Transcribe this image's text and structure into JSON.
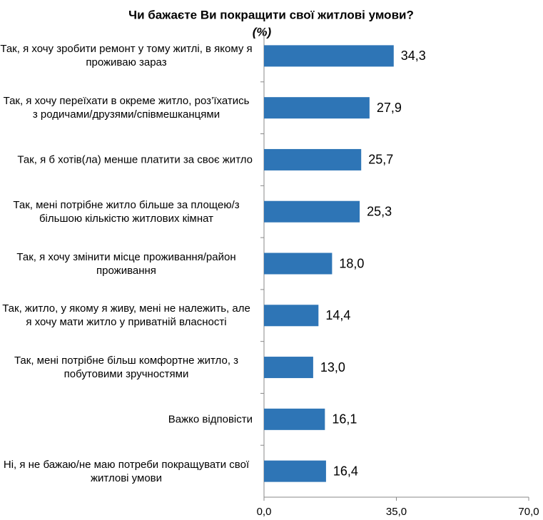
{
  "chart_data": {
    "type": "hbar",
    "title": "Чи бажаєте Ви покращити свої житлові умови?",
    "subtitle": "(%)",
    "categories": [
      "Так, я хочу зробити ремонт у тому житлі, в якому я проживаю зараз",
      "Так, я хочу переїхати в окреме житло, роз’їхатись з родичами/друзями/співмешканцями",
      "Так, я б хотів(ла) менше платити за своє житло",
      "Так, мені потрібне житло більше за площею/з більшою кількістю житлових кімнат",
      "Так, я хочу змінити місце проживання/район проживання",
      "Так, житло, у якому я живу, мені не належить, але я хочу мати житло у приватній власності",
      "Так, мені потрібне більш комфортне житло, з побутовими зручностями",
      "Важко відповісти",
      "Ні, я не бажаю/не маю потреби покращувати свої житлові умови"
    ],
    "values": [
      34.3,
      27.9,
      25.7,
      25.3,
      18.0,
      14.4,
      13.0,
      16.1,
      16.4
    ],
    "value_labels": [
      "34,3",
      "27,9",
      "25,7",
      "25,3",
      "18,0",
      "14,4",
      "13,0",
      "16,1",
      "16,4"
    ],
    "color": "#2e75b6",
    "xlim": [
      0,
      70
    ],
    "xticks": [
      {
        "value": 0,
        "label": "0,0"
      },
      {
        "value": 35,
        "label": "35,0"
      },
      {
        "value": 70,
        "label": "70,0"
      }
    ]
  }
}
